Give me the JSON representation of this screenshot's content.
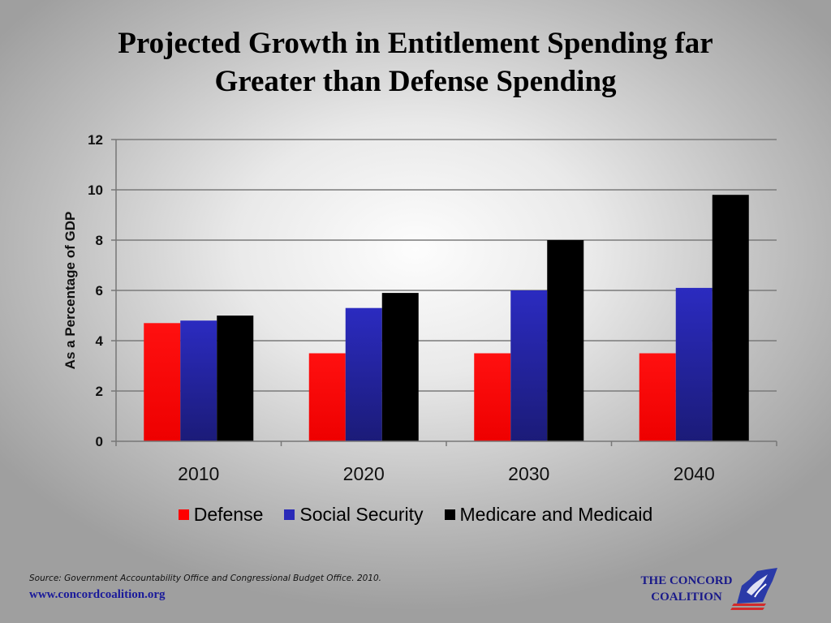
{
  "slide": {
    "title_line1": "Projected Growth in Entitlement Spending far",
    "title_line2": "Greater than Defense Spending",
    "source": "Source: Government Accountability Office and Congressional Budget Office. 2010.",
    "url": "www.concordcoalition.org",
    "logo_line1": "THE CONCORD",
    "logo_line2": "COALITION",
    "logo_icon": "virginia-map-eagle-icon"
  },
  "chart_data": {
    "type": "bar",
    "title": "",
    "xlabel": "",
    "ylabel": "As a Percentage of GDP",
    "ylim": [
      0,
      12
    ],
    "yticks": [
      0,
      2,
      4,
      6,
      8,
      10,
      12
    ],
    "grid": true,
    "legend_position": "bottom",
    "categories": [
      "2010",
      "2020",
      "2030",
      "2040"
    ],
    "series": [
      {
        "name": "Defense",
        "color": "#ff0000",
        "values": [
          4.7,
          3.5,
          3.5,
          3.5
        ]
      },
      {
        "name": "Social Security",
        "color": "#2a2ab8",
        "values": [
          4.8,
          5.3,
          6.0,
          6.1
        ]
      },
      {
        "name": "Medicare and Medicaid",
        "color": "#000000",
        "values": [
          5.0,
          5.9,
          8.0,
          9.8
        ]
      }
    ]
  }
}
